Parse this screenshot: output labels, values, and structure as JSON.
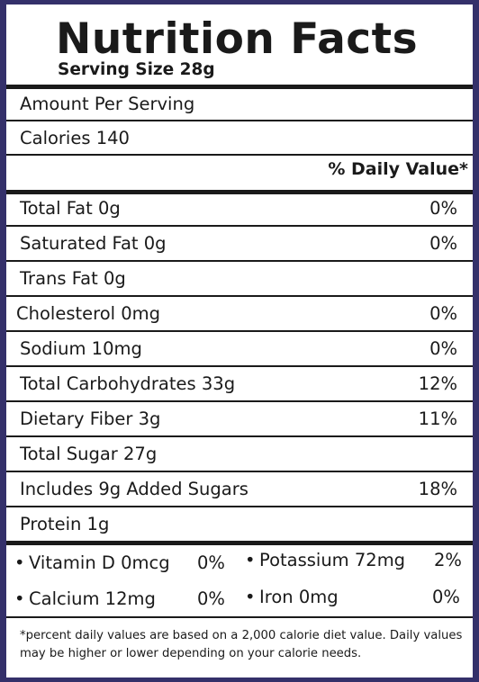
{
  "title": "Nutrition Facts",
  "serving_size": "Serving Size 28g",
  "amount_per_serving": "Amount Per Serving",
  "calories": "Calories 140",
  "daily_value_header": "% Daily Value*",
  "nutrients": [
    {
      "name": "Total Fat 0g",
      "dv": "0%"
    },
    {
      "name": "Saturated Fat 0g",
      "dv": "0%"
    },
    {
      "name": "Trans Fat 0g",
      "dv": ""
    },
    {
      "name": "Cholesterol 0mg",
      "dv": "0%"
    },
    {
      "name": "Sodium 10mg",
      "dv": "0%"
    },
    {
      "name": "Total Carbohydrates 33g",
      "dv": "12%"
    },
    {
      "name": "Dietary Fiber 3g",
      "dv": "11%"
    },
    {
      "name": "Total Sugar 27g",
      "dv": ""
    },
    {
      "name": "Includes 9g Added Sugars",
      "dv": "18%"
    },
    {
      "name": "Protein 1g",
      "dv": ""
    }
  ],
  "vitamins": [
    {
      "name": "Vitamin D 0mcg",
      "dv": "0%"
    },
    {
      "name": "Potassium 72mg",
      "dv": "2%"
    },
    {
      "name": "Calcium 12mg",
      "dv": "0%"
    },
    {
      "name": "Iron 0mg",
      "dv": "0%"
    }
  ],
  "bullet": "•",
  "footnote": "*percent daily values are based on a 2,000 calorie diet value. Daily values may be higher or lower depending on your calorie needs."
}
